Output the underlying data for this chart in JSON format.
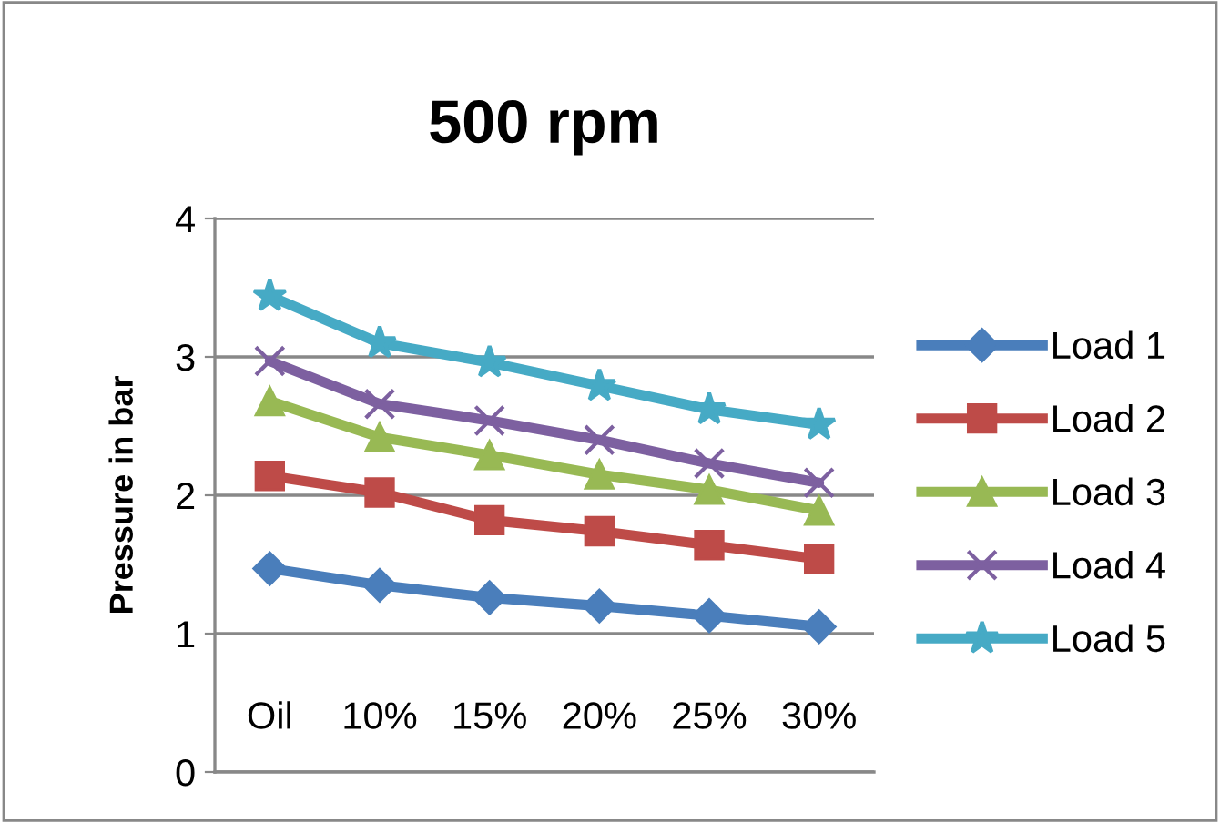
{
  "chart_data": {
    "type": "line",
    "title": "500 rpm",
    "ylabel": "Pressure in bar",
    "categories": [
      "Oil",
      "10%",
      "15%",
      "20%",
      "25%",
      "30%"
    ],
    "series": [
      {
        "name": "Load 1",
        "color": "#4a7ebb",
        "marker": "diamond",
        "values": [
          1.47,
          1.35,
          1.26,
          1.2,
          1.13,
          1.05
        ]
      },
      {
        "name": "Load 2",
        "color": "#be4b48",
        "marker": "square",
        "values": [
          2.14,
          2.02,
          1.82,
          1.74,
          1.64,
          1.54
        ]
      },
      {
        "name": "Load 3",
        "color": "#98b954",
        "marker": "triangle",
        "values": [
          2.68,
          2.42,
          2.29,
          2.15,
          2.04,
          1.89
        ]
      },
      {
        "name": "Load 4",
        "color": "#7d60a0",
        "marker": "cross",
        "values": [
          2.97,
          2.66,
          2.54,
          2.4,
          2.23,
          2.09
        ]
      },
      {
        "name": "Load 5",
        "color": "#46aac5",
        "marker": "star",
        "values": [
          3.44,
          3.1,
          2.96,
          2.79,
          2.62,
          2.51
        ]
      }
    ],
    "ylim": [
      0,
      4
    ],
    "yticks": [
      0,
      1,
      2,
      3,
      4
    ],
    "grid": "y",
    "legend": "right",
    "line_style": "solid"
  }
}
